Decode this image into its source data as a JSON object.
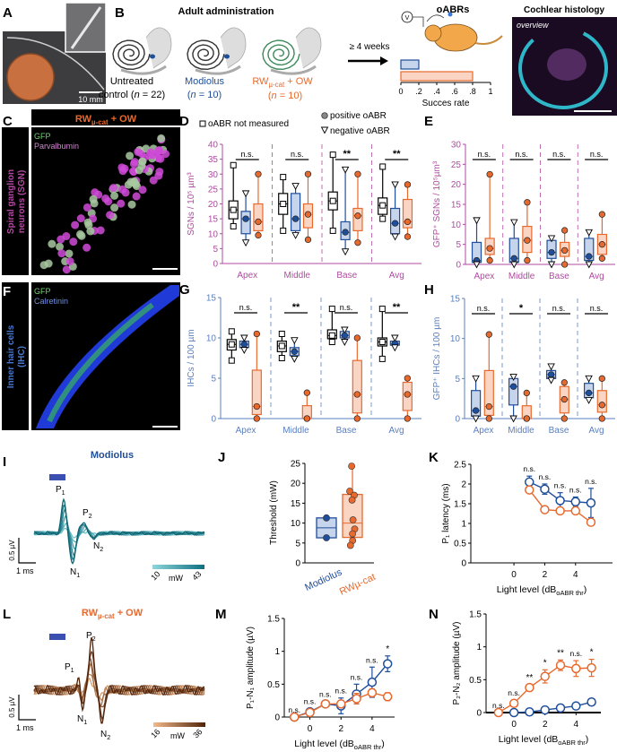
{
  "colors": {
    "control": "#000000",
    "modiolus": "#1f4e9a",
    "rw": "#e8692d",
    "rw_fill": "#fbd5c3",
    "mod_fill": "#c6d4ec",
    "sgn_axis": "#b04aa0",
    "ihc_axis": "#5a7fc0",
    "stim": "#3b4fb0"
  },
  "legend": {
    "not_measured": "oABR not measured",
    "positive": "positive oABR",
    "negative": "negative oABR"
  },
  "panelA": {
    "label": "A",
    "scale": "10 mm"
  },
  "panelB": {
    "label": "B",
    "title": "Adult administration",
    "groups": [
      {
        "line1": "Untreated",
        "line2": "control (",
        "n": "n",
        "line2b": " = 22)"
      },
      {
        "line1": "Modiolus",
        "line2": "(",
        "n": "n",
        "line2b": " = 10)"
      },
      {
        "line1": "RW",
        "sub": "µ-cat",
        "line1b": " + OW",
        "line2": "(",
        "n": "n",
        "line2b": " = 10)"
      }
    ],
    "arrow": "≥ 4 weeks",
    "oabr_title": "oABRs",
    "meter": "V",
    "histology_title": "Cochlear histology",
    "overview": "overview"
  },
  "panelC": {
    "label": "C",
    "header": "RW",
    "header_sub": "µ-cat",
    "header_rest": " + OW",
    "stain1": "GFP",
    "stain2": "Parvalbumin",
    "side1": "Spiral ganglion",
    "side2": "neurons (SGN)"
  },
  "panelF": {
    "label": "F",
    "stain1": "GFP",
    "stain2": "Calretinin",
    "side1": "Inner hair cells",
    "side2": "(IHC)"
  },
  "panelsDEGH": {
    "D": "D",
    "E": "E",
    "G": "G",
    "H": "H"
  },
  "panelI": {
    "label": "I",
    "title": "Modiolus",
    "p1": "P",
    "p1s": "1",
    "p2": "P",
    "p2s": "2",
    "n1": "N",
    "n1s": "1",
    "n2": "N",
    "n2s": "2",
    "scale_v": "0.5 µV",
    "scale_t": "1 ms",
    "cb_min": "10",
    "cb_unit": "mW",
    "cb_max": "43"
  },
  "panelL": {
    "label": "L",
    "title": "RW",
    "title_sub": "µ-cat",
    "title_rest": " + OW",
    "p1": "P",
    "p1s": "1",
    "p2": "P",
    "p2s": "2",
    "n1": "N",
    "n1s": "1",
    "n2": "N",
    "n2s": "2",
    "scale_v": "0.5 µV",
    "scale_t": "1 ms",
    "cb_min": "16",
    "cb_unit": "mW",
    "cb_max": "36"
  },
  "panelJKMN": {
    "J": "J",
    "K": "K",
    "M": "M",
    "N": "N"
  },
  "chart_data": [
    {
      "type": "bar",
      "panel": "B",
      "xlabel": "Succes rate",
      "xlim": [
        0,
        1
      ],
      "xticks": [
        "0",
        ".2",
        ".4",
        ".6",
        ".8",
        "1"
      ],
      "categories": [
        "Modiolus",
        "RWµ-cat + OW"
      ],
      "values": [
        0.2,
        0.8
      ]
    },
    {
      "type": "box",
      "panel": "D",
      "ylabel": "SGNs / 10⁵ µm³",
      "ylim": [
        0,
        40
      ],
      "yticks": [
        "0",
        "5",
        "10",
        "15",
        "20",
        "25",
        "30",
        "35",
        "40"
      ],
      "categories": [
        "Apex",
        "Middle",
        "Base",
        "Avg"
      ],
      "significance": [
        "n.s.",
        "n.s.",
        "**",
        "**"
      ],
      "series": [
        {
          "group": "control",
          "values": [
            {
              "min": 12.5,
              "q1": 15,
              "median": 18,
              "q3": 21,
              "max": 33
            },
            {
              "min": 11,
              "q1": 16.5,
              "median": 20,
              "q3": 23.5,
              "max": 29
            },
            {
              "min": 11,
              "q1": 18,
              "median": 21,
              "q3": 24,
              "max": 36.5
            },
            {
              "min": 15,
              "q1": 16.5,
              "median": 19.5,
              "q3": 22,
              "max": 32.5
            }
          ]
        },
        {
          "group": "modiolus",
          "values": [
            {
              "min": 7,
              "q1": 10,
              "median": 15,
              "q3": 17.5,
              "max": 23.5
            },
            {
              "min": 9.5,
              "q1": 11,
              "median": 15,
              "q3": 23.5,
              "max": 26
            },
            {
              "min": 4,
              "q1": 8,
              "median": 10.5,
              "q3": 14,
              "max": 31.5
            },
            {
              "min": 9,
              "q1": 10,
              "median": 13.5,
              "q3": 18.5,
              "max": 26.5
            }
          ]
        },
        {
          "group": "rw",
          "values": [
            {
              "min": 9.5,
              "q1": 11,
              "median": 14,
              "q3": 20,
              "max": 30
            },
            {
              "min": 8,
              "q1": 12,
              "median": 16.5,
              "q3": 20,
              "max": 30
            },
            {
              "min": 7,
              "q1": 11,
              "median": 16,
              "q3": 18.5,
              "max": 30
            },
            {
              "min": 9,
              "q1": 12,
              "median": 14,
              "q3": 21.5,
              "max": 26.5
            }
          ]
        }
      ]
    },
    {
      "type": "box",
      "panel": "E",
      "ylabel": "GFP⁺ SGNs / 10⁵µm³",
      "ylim": [
        0,
        30
      ],
      "yticks": [
        "0",
        "5",
        "10",
        "15",
        "20",
        "25",
        "30"
      ],
      "categories": [
        "Apex",
        "Middle",
        "Base",
        "Avg"
      ],
      "significance": [
        "n.s.",
        "n.s.",
        "n.s.",
        "n.s."
      ],
      "series": [
        {
          "group": "modiolus",
          "values": [
            {
              "min": 0,
              "q1": 0.5,
              "median": 1,
              "q3": 5.5,
              "max": 11
            },
            {
              "min": 0,
              "q1": 0.5,
              "median": 1.5,
              "q3": 6.5,
              "max": 10.5
            },
            {
              "min": 0,
              "q1": 1.5,
              "median": 3,
              "q3": 6,
              "max": 6.5
            },
            {
              "min": 0,
              "q1": 1,
              "median": 2,
              "q3": 6.5,
              "max": 8
            }
          ]
        },
        {
          "group": "rw",
          "values": [
            {
              "min": 1,
              "q1": 2.5,
              "median": 4,
              "q3": 6.5,
              "max": 22.5
            },
            {
              "min": 1,
              "q1": 3,
              "median": 6,
              "q3": 9.5,
              "max": 15.5
            },
            {
              "min": 0,
              "q1": 2,
              "median": 3.5,
              "q3": 5.5,
              "max": 8.5
            },
            {
              "min": 1.5,
              "q1": 2.5,
              "median": 5,
              "q3": 7.5,
              "max": 12.5
            }
          ]
        }
      ]
    },
    {
      "type": "box",
      "panel": "G",
      "ylabel": "IHCs / 100 µm",
      "ylim": [
        0,
        15
      ],
      "yticks": [
        "0",
        "5",
        "10",
        "15"
      ],
      "categories": [
        "Apex",
        "Middle",
        "Base",
        "Avg"
      ],
      "significance": [
        "n.s.",
        "**",
        "n.s.",
        "**"
      ],
      "series": [
        {
          "group": "control",
          "values": [
            {
              "min": 7.2,
              "q1": 8.5,
              "median": 9.2,
              "q3": 9.8,
              "max": 10.8
            },
            {
              "min": 7.5,
              "q1": 8.3,
              "median": 9,
              "q3": 9.6,
              "max": 10.5
            },
            {
              "min": 9.5,
              "q1": 9.9,
              "median": 10.3,
              "q3": 11,
              "max": 13.6
            },
            {
              "min": 7.4,
              "q1": 9,
              "median": 9.5,
              "q3": 10,
              "max": 13.6
            }
          ]
        },
        {
          "group": "modiolus",
          "values": [
            {
              "min": 8.5,
              "q1": 8.8,
              "median": 9.2,
              "q3": 9.6,
              "max": 10
            },
            {
              "min": 7.4,
              "q1": 7.8,
              "median": 8.3,
              "q3": 8.8,
              "max": 9.7
            },
            {
              "min": 9.5,
              "q1": 10,
              "median": 10.3,
              "q3": 10.8,
              "max": 11
            },
            {
              "min": 8.8,
              "q1": 9.1,
              "median": 9.3,
              "q3": 9.6,
              "max": 10
            }
          ]
        },
        {
          "group": "rw",
          "values": [
            {
              "min": 0,
              "q1": 0.5,
              "median": 1.5,
              "q3": 6,
              "max": 10.5
            },
            {
              "min": 0,
              "q1": 0,
              "median": 0,
              "q3": 1.6,
              "max": 3.2
            },
            {
              "min": 0,
              "q1": 0.7,
              "median": 3,
              "q3": 7.2,
              "max": 10
            },
            {
              "min": 0,
              "q1": 1,
              "median": 3,
              "q3": 4.5,
              "max": 5
            }
          ]
        }
      ]
    },
    {
      "type": "box",
      "panel": "H",
      "ylabel": "GFP⁺ IHCs / 100 µm",
      "ylim": [
        0,
        15
      ],
      "yticks": [
        "0",
        "5",
        "10",
        "15"
      ],
      "categories": [
        "Apex",
        "Middle",
        "Base",
        "Avg"
      ],
      "significance": [
        "n.s.",
        "*",
        "n.s.",
        "n.s."
      ],
      "series": [
        {
          "group": "modiolus",
          "values": [
            {
              "min": 0,
              "q1": 0.3,
              "median": 1,
              "q3": 3.5,
              "max": 5
            },
            {
              "min": 0,
              "q1": 1.7,
              "median": 4,
              "q3": 5,
              "max": 5.2
            },
            {
              "min": 4.8,
              "q1": 5,
              "median": 5.5,
              "q3": 6,
              "max": 6.5
            },
            {
              "min": 2.3,
              "q1": 2.6,
              "median": 3.2,
              "q3": 4.4,
              "max": 5
            }
          ]
        },
        {
          "group": "rw",
          "values": [
            {
              "min": 0,
              "q1": 0.4,
              "median": 1.5,
              "q3": 6,
              "max": 10.5
            },
            {
              "min": 0,
              "q1": 0,
              "median": 0,
              "q3": 1.6,
              "max": 3.2
            },
            {
              "min": 0,
              "q1": 0.7,
              "median": 2.4,
              "q3": 4,
              "max": 4.5
            },
            {
              "min": 0,
              "q1": 0.8,
              "median": 1.7,
              "q3": 3.5,
              "max": 5
            }
          ]
        }
      ]
    },
    {
      "type": "box",
      "panel": "J",
      "ylabel": "Threshold (mW)",
      "ylim": [
        0,
        25
      ],
      "yticks": [
        "0",
        "5",
        "10",
        "15",
        "20",
        "25"
      ],
      "categories": [
        "Modiolus",
        "RWµ-cat"
      ],
      "series": [
        {
          "group": "modiolus",
          "box": {
            "q1": 6.3,
            "median": 8.8,
            "q3": 11.3
          },
          "points": [
            11.3,
            6.3
          ]
        },
        {
          "group": "rw",
          "box": {
            "q1": 6.4,
            "median": 10,
            "q3": 17.2
          },
          "points": [
            24.3,
            18,
            17,
            15.8,
            10.8,
            8.5,
            7.3,
            5.6,
            4.4
          ]
        }
      ]
    },
    {
      "type": "line",
      "panel": "K",
      "ylabel": "P₁ latency (ms)",
      "xlabel": "Light level (dB oABR thr)",
      "xlim": [
        -2.8,
        6.4
      ],
      "ylim": [
        0,
        2.5
      ],
      "xticks": [
        "0",
        "2",
        "4"
      ],
      "yticks": [
        "0",
        "0.5",
        "1",
        "1.5",
        "2",
        "2.5"
      ],
      "x": [
        1,
        2,
        3,
        4,
        5
      ],
      "series": [
        {
          "group": "modiolus",
          "values": [
            2.05,
            1.87,
            1.58,
            1.55,
            1.52
          ],
          "err": [
            0.15,
            0.13,
            0.2,
            0.12,
            0.37
          ]
        },
        {
          "group": "rw",
          "values": [
            1.85,
            1.35,
            1.32,
            1.32,
            1.03
          ],
          "err": [
            0.05,
            0.05,
            0.07,
            0.05,
            0.05
          ]
        }
      ],
      "annotations": [
        "n.s.",
        "n.s.",
        "n.s.",
        "n.s.",
        "n.s."
      ]
    },
    {
      "type": "line",
      "panel": "M",
      "ylabel": "P₁-N₁ amplitude (µV)",
      "xlabel": "Light level (dB oABR thr)",
      "xlim": [
        -1.65,
        5.45
      ],
      "ylim": [
        0,
        1.5
      ],
      "xticks": [
        "0",
        "2",
        "4"
      ],
      "yticks": [
        "0",
        "0.5",
        "1",
        "1.5"
      ],
      "x": [
        -1,
        0,
        1,
        2,
        3,
        4,
        5
      ],
      "series": [
        {
          "group": "modiolus",
          "values": [
            0,
            0.08,
            0.2,
            0.17,
            0.35,
            0.53,
            0.81
          ],
          "err": [
            0,
            0.05,
            0.03,
            0.12,
            0.15,
            0.23,
            0.12
          ]
        },
        {
          "group": "rw",
          "values": [
            0,
            0.07,
            0.2,
            0.2,
            0.28,
            0.37,
            0.31
          ],
          "err": [
            0,
            0.03,
            0.04,
            0.05,
            0.08,
            0.06,
            0.06
          ]
        }
      ],
      "annotations": [
        "n.s.",
        "n.s.",
        "n.s.",
        "n.s.",
        "n.s.",
        "n.s.",
        "*"
      ]
    },
    {
      "type": "line",
      "panel": "N",
      "ylabel": "P₂-N₂ amplitude (µV)",
      "xlabel": "Light level (dB oABR thr)",
      "xlim": [
        -1.8,
        5.6
      ],
      "ylim": [
        0,
        1.5
      ],
      "xticks": [
        "0",
        "2",
        "4"
      ],
      "yticks": [
        "0",
        "0.5",
        "1",
        "1.5"
      ],
      "x": [
        -1,
        0,
        1,
        2,
        3,
        4,
        5
      ],
      "series": [
        {
          "group": "rw",
          "values": [
            0,
            0.14,
            0.38,
            0.55,
            0.72,
            0.67,
            0.68
          ],
          "err": [
            0,
            0.05,
            0.04,
            0.1,
            0.08,
            0.12,
            0.13
          ]
        },
        {
          "group": "modiolus",
          "values": [
            null,
            0,
            0.01,
            0.04,
            0.07,
            0.1,
            0.16
          ],
          "err": [
            0,
            0.01,
            0.01,
            0.02,
            0.02,
            0.02,
            0.03
          ]
        }
      ],
      "annotations": [
        "n.s.",
        "n.s.",
        "**",
        "*",
        "**",
        "n.s.",
        "*"
      ]
    }
  ]
}
